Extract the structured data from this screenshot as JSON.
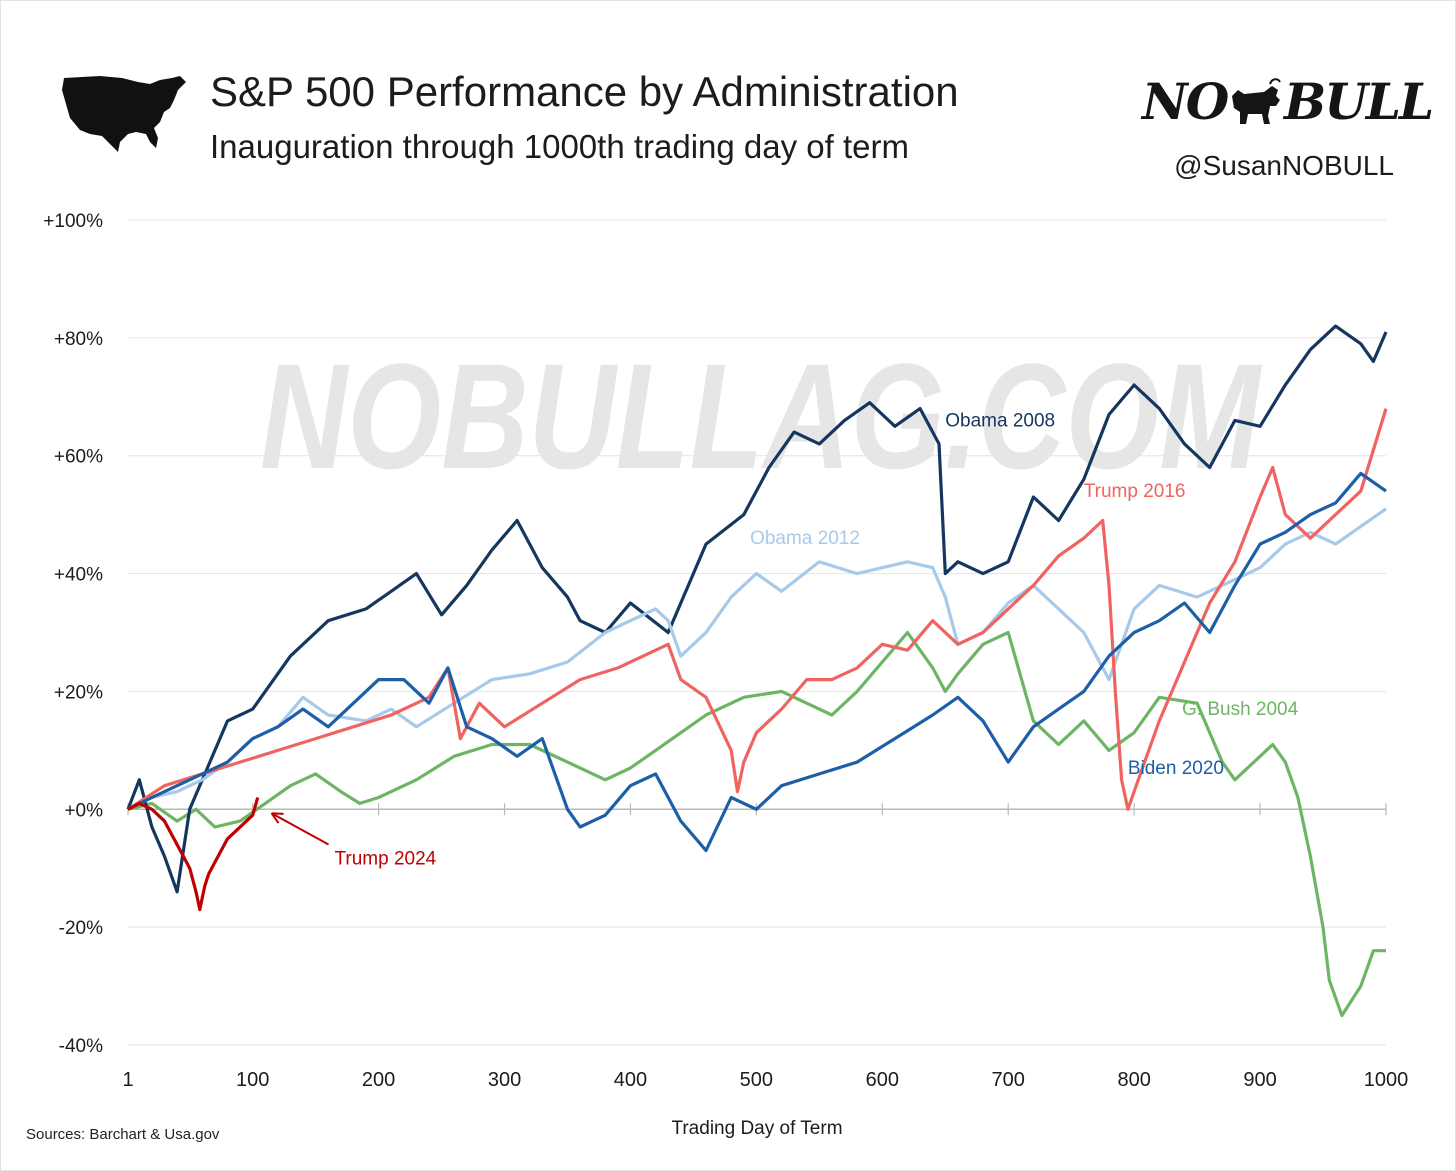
{
  "header": {
    "title": "S&P 500 Performance by Administration",
    "subtitle": "Inauguration through 1000th trading day of term",
    "handle": "@SusanNOBULL",
    "logo_left": "NO",
    "logo_right": "BULL"
  },
  "watermark": "NOBULLAG.COM",
  "sources": "Sources: Barchart & Usa.gov",
  "icons": {
    "map": "usa-map-icon",
    "logo": "bull-icon"
  },
  "chart_data": {
    "type": "line",
    "xlabel": "Trading Day of Term",
    "ylabel": "",
    "xlim": [
      1,
      1000
    ],
    "ylim": [
      -40,
      100
    ],
    "x_ticks": [
      1,
      100,
      200,
      300,
      400,
      500,
      600,
      700,
      800,
      900,
      1000
    ],
    "y_ticks": [
      100,
      80,
      60,
      40,
      20,
      0,
      -20,
      -40
    ],
    "y_tick_labels": [
      "+100%",
      "+80%",
      "+60%",
      "+40%",
      "+20%",
      "+0%",
      "-20%",
      "-40%"
    ],
    "grid": "horizontal",
    "series": [
      {
        "name": "G. Bush 2004",
        "color": "#6db565",
        "label_at": [
          838,
          16
        ],
        "x": [
          1,
          20,
          40,
          55,
          70,
          90,
          110,
          130,
          150,
          170,
          185,
          200,
          230,
          260,
          290,
          320,
          350,
          380,
          400,
          420,
          440,
          460,
          490,
          520,
          540,
          560,
          580,
          600,
          620,
          640,
          650,
          660,
          680,
          700,
          720,
          740,
          760,
          780,
          800,
          820,
          850,
          870,
          880,
          900,
          910,
          920,
          930,
          940,
          950,
          955,
          965,
          980,
          990,
          1000
        ],
        "y": [
          0,
          1,
          -2,
          0,
          -3,
          -2,
          1,
          4,
          6,
          3,
          1,
          2,
          5,
          9,
          11,
          11,
          8,
          5,
          7,
          10,
          13,
          16,
          19,
          20,
          18,
          16,
          20,
          25,
          30,
          24,
          20,
          23,
          28,
          30,
          15,
          11,
          15,
          10,
          13,
          19,
          18,
          8,
          5,
          9,
          11,
          8,
          2,
          -8,
          -20,
          -29,
          -35,
          -30,
          -24,
          -24
        ]
      },
      {
        "name": "Obama 2008",
        "color": "#15365f",
        "label_at": [
          650,
          65
        ],
        "x": [
          1,
          10,
          20,
          30,
          40,
          50,
          60,
          70,
          80,
          100,
          130,
          160,
          190,
          210,
          230,
          250,
          270,
          290,
          310,
          330,
          350,
          360,
          380,
          400,
          430,
          460,
          490,
          510,
          530,
          550,
          570,
          590,
          610,
          630,
          645,
          650,
          660,
          680,
          700,
          720,
          740,
          760,
          780,
          800,
          820,
          840,
          860,
          880,
          900,
          920,
          940,
          960,
          980,
          990,
          1000
        ],
        "y": [
          0,
          5,
          -3,
          -8,
          -14,
          0,
          5,
          10,
          15,
          17,
          26,
          32,
          34,
          37,
          40,
          33,
          38,
          44,
          49,
          41,
          36,
          32,
          30,
          35,
          30,
          45,
          50,
          58,
          64,
          62,
          66,
          69,
          65,
          68,
          62,
          40,
          42,
          40,
          42,
          53,
          49,
          56,
          67,
          72,
          68,
          62,
          58,
          66,
          65,
          72,
          78,
          82,
          79,
          76,
          81
        ]
      },
      {
        "name": "Obama 2012",
        "color": "#a7c9ea",
        "label_at": [
          495,
          45
        ],
        "x": [
          1,
          20,
          40,
          60,
          80,
          100,
          120,
          140,
          160,
          190,
          210,
          230,
          260,
          290,
          320,
          350,
          380,
          400,
          420,
          430,
          440,
          460,
          480,
          500,
          520,
          550,
          580,
          600,
          620,
          640,
          650,
          660,
          680,
          700,
          720,
          740,
          760,
          780,
          800,
          820,
          850,
          880,
          900,
          920,
          940,
          960,
          980,
          1000
        ],
        "y": [
          0,
          2,
          3,
          5,
          8,
          12,
          14,
          19,
          16,
          15,
          17,
          14,
          18,
          22,
          23,
          25,
          30,
          32,
          34,
          32,
          26,
          30,
          36,
          40,
          37,
          42,
          40,
          41,
          42,
          41,
          36,
          28,
          30,
          35,
          38,
          34,
          30,
          22,
          34,
          38,
          36,
          39,
          41,
          45,
          47,
          45,
          48,
          51
        ]
      },
      {
        "name": "Trump 2016",
        "color": "#ef6461",
        "label_at": [
          760,
          53
        ],
        "x": [
          1,
          30,
          60,
          90,
          120,
          150,
          180,
          210,
          240,
          255,
          265,
          280,
          300,
          330,
          360,
          390,
          420,
          430,
          440,
          460,
          480,
          485,
          490,
          500,
          520,
          540,
          560,
          580,
          600,
          620,
          640,
          660,
          680,
          700,
          720,
          740,
          760,
          775,
          780,
          785,
          790,
          795,
          800,
          820,
          840,
          860,
          880,
          900,
          910,
          920,
          940,
          960,
          980,
          1000
        ],
        "y": [
          0,
          4,
          6,
          8,
          10,
          12,
          14,
          16,
          19,
          24,
          12,
          18,
          14,
          18,
          22,
          24,
          27,
          28,
          22,
          19,
          10,
          3,
          8,
          13,
          17,
          22,
          22,
          24,
          28,
          27,
          32,
          28,
          30,
          34,
          38,
          43,
          46,
          49,
          38,
          20,
          5,
          0,
          3,
          15,
          25,
          35,
          42,
          53,
          58,
          50,
          46,
          50,
          54,
          68
        ]
      },
      {
        "name": "Biden 2020",
        "color": "#1d5fa6",
        "label_at": [
          795,
          6
        ],
        "x": [
          1,
          20,
          40,
          60,
          80,
          100,
          120,
          140,
          160,
          180,
          200,
          220,
          240,
          255,
          270,
          290,
          310,
          330,
          350,
          360,
          370,
          380,
          400,
          420,
          440,
          460,
          480,
          500,
          520,
          550,
          580,
          610,
          640,
          660,
          680,
          700,
          720,
          740,
          760,
          780,
          800,
          820,
          840,
          860,
          880,
          900,
          920,
          940,
          960,
          980,
          1000
        ],
        "y": [
          0,
          2,
          4,
          6,
          8,
          12,
          14,
          17,
          14,
          18,
          22,
          22,
          18,
          24,
          14,
          12,
          9,
          12,
          0,
          -3,
          -2,
          -1,
          4,
          6,
          -2,
          -7,
          2,
          0,
          4,
          6,
          8,
          12,
          16,
          19,
          15,
          8,
          14,
          17,
          20,
          26,
          30,
          32,
          35,
          30,
          38,
          45,
          47,
          50,
          52,
          57,
          54
        ]
      },
      {
        "name": "Trump 2024",
        "color": "#c00000",
        "label_at": [
          155,
          -7
        ],
        "x": [
          1,
          10,
          20,
          30,
          40,
          45,
          50,
          55,
          58,
          62,
          65,
          70,
          75,
          80,
          85,
          90,
          95,
          100,
          104
        ],
        "y": [
          0,
          1,
          0,
          -2,
          -6,
          -8,
          -10,
          -14,
          -17,
          -13,
          -11,
          -9,
          -7,
          -5,
          -4,
          -3,
          -2,
          -1,
          2
        ]
      }
    ],
    "annotation": {
      "text": "Trump 2024",
      "arrow_from": [
        165,
        -7
      ],
      "arrow_to": [
        115,
        0
      ]
    }
  }
}
